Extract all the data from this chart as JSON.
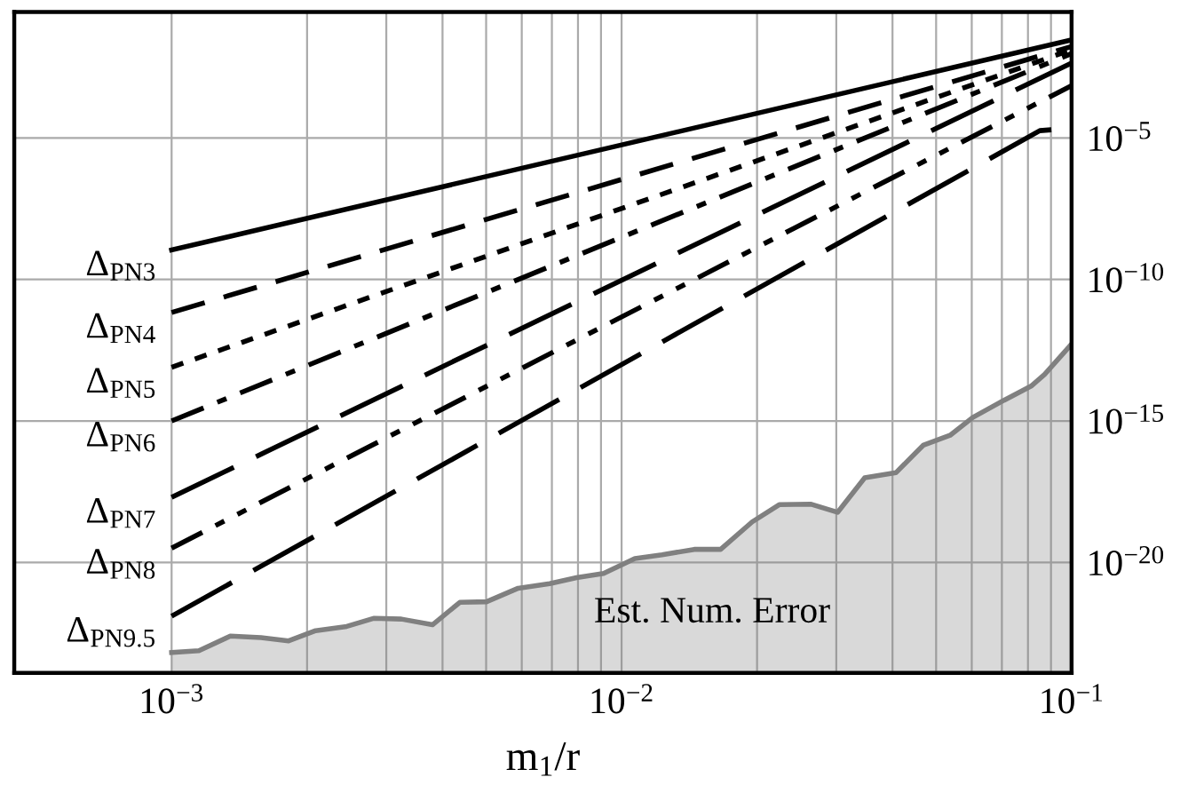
{
  "chart_data": {
    "type": "line",
    "xlabel": "m$_{1}$/r",
    "log": "xy",
    "xlim": [
      0.000447,
      0.1
    ],
    "ylim": [
      1.26e-24,
      0.28
    ],
    "xticks": [
      {
        "value": 0.001,
        "label": "10$^{−3}$"
      },
      {
        "value": 0.002,
        "label": null
      },
      {
        "value": 0.003,
        "label": null
      },
      {
        "value": 0.004,
        "label": null
      },
      {
        "value": 0.005,
        "label": null
      },
      {
        "value": 0.006,
        "label": null
      },
      {
        "value": 0.007,
        "label": null
      },
      {
        "value": 0.008,
        "label": null
      },
      {
        "value": 0.009,
        "label": null
      },
      {
        "value": 0.01,
        "label": "10$^{−2}$"
      },
      {
        "value": 0.02,
        "label": null
      },
      {
        "value": 0.03,
        "label": null
      },
      {
        "value": 0.04,
        "label": null
      },
      {
        "value": 0.05,
        "label": null
      },
      {
        "value": 0.06,
        "label": null
      },
      {
        "value": 0.07,
        "label": null
      },
      {
        "value": 0.08,
        "label": null
      },
      {
        "value": 0.09,
        "label": null
      },
      {
        "value": 0.1,
        "label": "10$^{−1}$"
      }
    ],
    "yticks": [
      {
        "value": 1e-20,
        "label": "10$^{−20}$"
      },
      {
        "value": 1e-15,
        "label": "10$^{−15}$"
      },
      {
        "value": 1e-10,
        "label": "10$^{−10}$"
      },
      {
        "value": 1e-05,
        "label": "10$^{−5}$"
      }
    ],
    "grid": true,
    "legend": false,
    "series": [
      {
        "name": "Δ$_{PN3}$",
        "color": "#000000",
        "line_style": "solid",
        "x": [
          0.001,
          0.1
        ],
        "values": [
          1.1e-09,
          0.029
        ]
      },
      {
        "name": "Δ$_{PN4}$",
        "color": "#000000",
        "line_style": "dashed",
        "x": [
          0.001,
          0.1
        ],
        "values": [
          6.8e-12,
          0.017
        ]
      },
      {
        "name": "Δ$_{PN5}$",
        "color": "#000000",
        "line_style": "dotted",
        "x": [
          0.001,
          0.1
        ],
        "values": [
          7.9e-14,
          0.013
        ]
      },
      {
        "name": "Δ$_{PN6}$",
        "color": "#000000",
        "line_style": "dashdot",
        "x": [
          0.001,
          0.1
        ],
        "values": [
          1e-15,
          0.0095
        ]
      },
      {
        "name": "Δ$_{PN7}$",
        "color": "#000000",
        "line_style": "longdash",
        "x": [
          0.001,
          0.1
        ],
        "values": [
          2e-18,
          0.0044
        ]
      },
      {
        "name": "Δ$_{PN8}$",
        "color": "#000000",
        "line_style": "dashdotdot",
        "x": [
          0.001,
          0.1
        ],
        "values": [
          3.2e-20,
          0.0007
        ]
      },
      {
        "name": "Δ$_{PN9.5}$",
        "color": "#000000",
        "line_style": "longdash",
        "x": [
          0.001,
          0.085,
          0.1
        ],
        "values": [
          1.26e-22,
          1.8e-05,
          2.2e-05
        ]
      },
      {
        "name": "Est. Num. Error",
        "type": "area",
        "color": "#808080",
        "x": [
          0.001,
          0.00115,
          0.00135,
          0.00158,
          0.00182,
          0.00209,
          0.00245,
          0.00282,
          0.00324,
          0.0038,
          0.00437,
          0.00501,
          0.00589,
          0.00692,
          0.00794,
          0.00912,
          0.0107,
          0.0123,
          0.0145,
          0.0166,
          0.0195,
          0.0224,
          0.0263,
          0.0302,
          0.0347,
          0.0407,
          0.0468,
          0.0537,
          0.0603,
          0.0708,
          0.0813,
          0.0871,
          0.1
        ],
        "values": [
          6.6e-24,
          7.6e-24,
          2.5e-23,
          2.2e-23,
          1.7e-23,
          3.9e-23,
          5.5e-23,
          1.07e-22,
          1e-22,
          6.3e-23,
          3.9e-22,
          4.1e-22,
          1.23e-21,
          1.78e-21,
          2.9e-21,
          4.1e-21,
          1.38e-20,
          1.86e-20,
          2.9e-20,
          2.9e-20,
          2.7e-19,
          1.1e-18,
          1.15e-18,
          5.9e-19,
          9.8e-18,
          1.48e-17,
          1.38e-16,
          3.1e-16,
          1.32e-15,
          5.4e-15,
          1.7e-14,
          4.4e-14,
          5.2e-13
        ]
      }
    ]
  }
}
